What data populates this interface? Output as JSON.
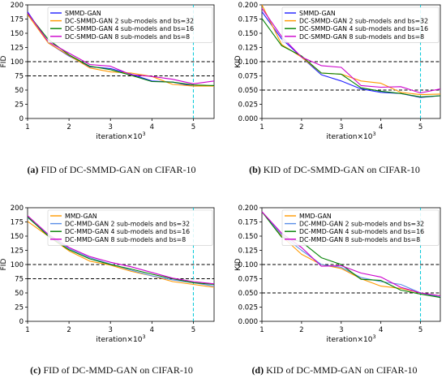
{
  "chart_data": [
    {
      "type": "line",
      "ylabel": "FID",
      "xlabel": "iteration×10",
      "xlabel_exp": "3",
      "xlim": [
        1,
        5.5
      ],
      "ylim": [
        0,
        200
      ],
      "xticks": [
        1,
        2,
        3,
        4,
        5
      ],
      "yticks": [
        0,
        25,
        50,
        75,
        100,
        125,
        150,
        175,
        200
      ],
      "hlines": [
        100,
        75
      ],
      "vline": 5,
      "legend": "top-right",
      "caption_tag": "(a)",
      "caption_text": "FID of DC-SMMD-GAN on CIFAR-10",
      "series": [
        {
          "name": "SMMD-GAN",
          "color": "#1f1fff",
          "x": [
            1,
            1.5,
            2,
            2.5,
            3,
            3.5,
            4,
            4.5,
            5,
            5.5
          ],
          "y": [
            188,
            133,
            110,
            91,
            88,
            78,
            66,
            64,
            57,
            58
          ]
        },
        {
          "name": "DC-SMMD-GAN 2 sub-models and bs=32",
          "color": "#ff9900",
          "x": [
            1,
            1.5,
            2,
            2.5,
            3,
            3.5,
            4,
            4.5,
            5,
            5.5
          ],
          "y": [
            183,
            133,
            111,
            89,
            82,
            80,
            74,
            60,
            57,
            57
          ]
        },
        {
          "name": "DC-SMMD-GAN 4 sub-models and bs=16",
          "color": "#008000",
          "x": [
            1,
            1.5,
            2,
            2.5,
            3,
            3.5,
            4,
            4.5,
            5,
            5.5
          ],
          "y": [
            185,
            139,
            112,
            92,
            86,
            76,
            65,
            64,
            59,
            58
          ]
        },
        {
          "name": "DC-SMMD-GAN 8 sub-models and bs=8",
          "color": "#cc00cc",
          "x": [
            1,
            1.5,
            2,
            2.5,
            3,
            3.5,
            4,
            4.5,
            5,
            5.5
          ],
          "y": [
            186,
            135,
            115,
            95,
            92,
            77,
            74,
            69,
            61,
            66
          ]
        }
      ]
    },
    {
      "type": "line",
      "ylabel": "KID",
      "xlabel": "iteration×10",
      "xlabel_exp": "3",
      "xlim": [
        1,
        5.5
      ],
      "ylim": [
        0,
        0.2
      ],
      "xticks": [
        1,
        2,
        3,
        4,
        5
      ],
      "yticks": [
        0.0,
        0.025,
        0.05,
        0.075,
        0.1,
        0.125,
        0.15,
        0.175,
        0.2
      ],
      "yticklabels": [
        "0.000",
        "0.025",
        "0.050",
        "0.075",
        "0.100",
        "0.125",
        "0.150",
        "0.175",
        "0.200"
      ],
      "hlines": [
        0.1,
        0.05
      ],
      "vline": 5,
      "legend": "top-right",
      "caption_tag": "(b)",
      "caption_text": "KID of DC-SMMD-GAN on CIFAR-10",
      "series": [
        {
          "name": "SMMD-GAN",
          "color": "#1f1fff",
          "x": [
            1,
            1.5,
            2,
            2.5,
            3,
            3.5,
            4,
            4.5,
            5,
            5.5
          ],
          "y": [
            0.188,
            0.14,
            0.108,
            0.077,
            0.066,
            0.052,
            0.046,
            0.044,
            0.037,
            0.04
          ]
        },
        {
          "name": "DC-SMMD-GAN 2 sub-models and bs=32",
          "color": "#ff9900",
          "x": [
            1,
            1.5,
            2,
            2.5,
            3,
            3.5,
            4,
            4.5,
            5,
            5.5
          ],
          "y": [
            0.2,
            0.13,
            0.108,
            0.08,
            0.078,
            0.066,
            0.062,
            0.046,
            0.042,
            0.043
          ]
        },
        {
          "name": "DC-SMMD-GAN 4 sub-models and bs=16",
          "color": "#008000",
          "x": [
            1,
            1.5,
            2,
            2.5,
            3,
            3.5,
            4,
            4.5,
            5,
            5.5
          ],
          "y": [
            0.176,
            0.128,
            0.11,
            0.08,
            0.078,
            0.054,
            0.048,
            0.044,
            0.038,
            0.04
          ]
        },
        {
          "name": "DC-SMMD-GAN 8 sub-models and bs=8",
          "color": "#cc00cc",
          "x": [
            1,
            1.5,
            2,
            2.5,
            3,
            3.5,
            4,
            4.5,
            5,
            5.5
          ],
          "y": [
            0.194,
            0.144,
            0.108,
            0.093,
            0.09,
            0.058,
            0.055,
            0.056,
            0.045,
            0.052
          ]
        }
      ]
    },
    {
      "type": "line",
      "ylabel": "FID",
      "xlabel": "iteration×10",
      "xlabel_exp": "3",
      "xlim": [
        1,
        5.5
      ],
      "ylim": [
        0,
        200
      ],
      "xticks": [
        1,
        2,
        3,
        4,
        5
      ],
      "yticks": [
        0,
        25,
        50,
        75,
        100,
        125,
        150,
        175,
        200
      ],
      "hlines": [
        100,
        75
      ],
      "vline": 5,
      "legend": "top-right",
      "caption_tag": "(c)",
      "caption_text": "FID of DC-MMD-GAN on CIFAR-10",
      "series": [
        {
          "name": "MMD-GAN",
          "color": "#ff9900",
          "x": [
            1,
            1.5,
            2,
            2.5,
            3,
            3.5,
            4,
            4.5,
            5,
            5.5
          ],
          "y": [
            176,
            150,
            124,
            106,
            99,
            88,
            80,
            70,
            65,
            60
          ]
        },
        {
          "name": "DC-MMD-GAN 2 sub-models and bs=32",
          "color": "#5a8fe8",
          "x": [
            1,
            1.5,
            2,
            2.5,
            3,
            3.5,
            4,
            4.5,
            5,
            5.5
          ],
          "y": [
            183,
            152,
            128,
            112,
            101,
            90,
            80,
            73,
            68,
            62
          ]
        },
        {
          "name": "DC-MMD-GAN 4 sub-models and bs=16",
          "color": "#008000",
          "x": [
            1,
            1.5,
            2,
            2.5,
            3,
            3.5,
            4,
            4.5,
            5,
            5.5
          ],
          "y": [
            184,
            150,
            126,
            110,
            100,
            92,
            83,
            75,
            68,
            65
          ]
        },
        {
          "name": "DC-MMD-GAN 8 sub-models and bs=8",
          "color": "#cc00cc",
          "x": [
            1,
            1.5,
            2,
            2.5,
            3,
            3.5,
            4,
            4.5,
            5,
            5.5
          ],
          "y": [
            186,
            153,
            130,
            114,
            104,
            96,
            86,
            76,
            70,
            66
          ]
        }
      ]
    },
    {
      "type": "line",
      "ylabel": "KID",
      "xlabel": "iteration×10",
      "xlabel_exp": "3",
      "xlim": [
        1,
        5.5
      ],
      "ylim": [
        0,
        0.2
      ],
      "xticks": [
        1,
        2,
        3,
        4,
        5
      ],
      "yticks": [
        0.0,
        0.025,
        0.05,
        0.075,
        0.1,
        0.125,
        0.15,
        0.175,
        0.2
      ],
      "yticklabels": [
        "0.000",
        "0.025",
        "0.050",
        "0.075",
        "0.100",
        "0.125",
        "0.150",
        "0.175",
        "0.200"
      ],
      "hlines": [
        0.1,
        0.05
      ],
      "vline": 5,
      "legend": "top-right",
      "caption_tag": "(d)",
      "caption_text": "KID of DC-MMD-GAN on CIFAR-10",
      "series": [
        {
          "name": "MMD-GAN",
          "color": "#ff9900",
          "x": [
            1,
            1.5,
            2,
            2.5,
            3,
            3.5,
            4,
            4.5,
            5,
            5.5
          ],
          "y": [
            0.193,
            0.15,
            0.118,
            0.1,
            0.093,
            0.075,
            0.062,
            0.058,
            0.05,
            0.045
          ]
        },
        {
          "name": "DC-MMD-GAN 2 sub-models and bs=32",
          "color": "#5a8fe8",
          "x": [
            1,
            1.5,
            2,
            2.5,
            3,
            3.5,
            4,
            4.5,
            5,
            5.5
          ],
          "y": [
            0.193,
            0.152,
            0.125,
            0.1,
            0.095,
            0.077,
            0.07,
            0.065,
            0.05,
            0.043
          ]
        },
        {
          "name": "DC-MMD-GAN 4 sub-models and bs=16",
          "color": "#008000",
          "x": [
            1,
            1.5,
            2,
            2.5,
            3,
            3.5,
            4,
            4.5,
            5,
            5.5
          ],
          "y": [
            0.193,
            0.148,
            0.14,
            0.112,
            0.1,
            0.074,
            0.072,
            0.055,
            0.048,
            0.042
          ]
        },
        {
          "name": "DC-MMD-GAN 8 sub-models and bs=8",
          "color": "#cc00cc",
          "x": [
            1,
            1.5,
            2,
            2.5,
            3,
            3.5,
            4,
            4.5,
            5,
            5.5
          ],
          "y": [
            0.193,
            0.155,
            0.13,
            0.097,
            0.098,
            0.085,
            0.078,
            0.06,
            0.05,
            0.045
          ]
        }
      ]
    }
  ]
}
